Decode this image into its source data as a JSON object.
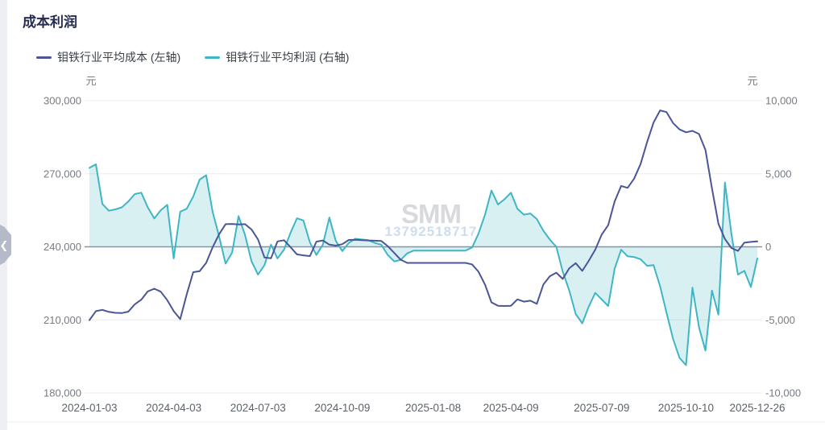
{
  "page": {
    "title": "成本利润"
  },
  "watermark": {
    "logo": "SMM",
    "phone": "13792518717"
  },
  "chart_data": {
    "type": "line",
    "title": "成本利润",
    "legend_position": "top-left",
    "grid": "horizontal-only",
    "grid_color": "#ececec",
    "zero_line_color": "#8d929c",
    "axis_text_color": "#767b84",
    "x_label_color": "#5d6268",
    "left_axis": {
      "unit": "元",
      "max": 300000,
      "min": 180000,
      "ticks": [
        "300,000",
        "270,000",
        "240,000",
        "210,000",
        "180,000"
      ]
    },
    "right_axis": {
      "unit": "元",
      "max": 10000,
      "min": -10000,
      "ticks": [
        "10,000",
        "5,000",
        "0",
        "-5,000",
        "-10,000"
      ]
    },
    "x_ticks": [
      {
        "index": 0,
        "label": "2024-01-03"
      },
      {
        "index": 13,
        "label": "2024-04-03"
      },
      {
        "index": 26,
        "label": "2024-07-03"
      },
      {
        "index": 39,
        "label": "2024-10-09"
      },
      {
        "index": 53,
        "label": "2025-01-08"
      },
      {
        "index": 65,
        "label": "2025-04-09"
      },
      {
        "index": 79,
        "label": "2025-07-09"
      },
      {
        "index": 92,
        "label": "2025-10-10"
      },
      {
        "index": 103,
        "label": "2025-12-26"
      }
    ],
    "series": [
      {
        "name": "钼铁行业平均成本 (左轴)",
        "axis": "left",
        "color": "#4a5695",
        "area": false,
        "values": [
          209900,
          213600,
          214100,
          213300,
          212900,
          212800,
          213400,
          216400,
          218300,
          221700,
          222800,
          221600,
          218100,
          213600,
          210300,
          220400,
          229600,
          230000,
          233400,
          239800,
          245200,
          249300,
          249400,
          249200,
          249300,
          247100,
          243000,
          235600,
          235300,
          242200,
          242700,
          239900,
          236900,
          236500,
          236200,
          242100,
          242600,
          240900,
          240500,
          241100,
          242800,
          242900,
          242700,
          242600,
          242500,
          242400,
          240300,
          237500,
          234700,
          233400,
          233400,
          233400,
          233400,
          233400,
          233400,
          233400,
          233400,
          233400,
          233400,
          232800,
          229800,
          224500,
          217200,
          215800,
          215700,
          215800,
          218400,
          217500,
          217900,
          216600,
          224500,
          227900,
          229400,
          226800,
          231200,
          233300,
          230100,
          234200,
          238800,
          245000,
          248900,
          258600,
          265000,
          264200,
          268000,
          274000,
          283000,
          291000,
          296000,
          295300,
          290800,
          288200,
          287000,
          287600,
          286300,
          279800,
          264000,
          249500,
          243200,
          239500,
          238300,
          241700,
          242000,
          242200
        ]
      },
      {
        "name": "钼铁行业平均利润 (右轴)",
        "axis": "right",
        "color": "#3fb6c3",
        "area": true,
        "area_color": "rgba(63,182,195,0.20)",
        "area_origin": 0,
        "values": [
          5400,
          5650,
          2930,
          2470,
          2560,
          2700,
          3100,
          3610,
          3700,
          2700,
          1940,
          2500,
          2870,
          -800,
          2400,
          2600,
          3430,
          4600,
          4900,
          2400,
          700,
          -1150,
          -400,
          2100,
          800,
          -1000,
          -1900,
          -1250,
          150,
          -800,
          -200,
          950,
          1950,
          1800,
          300,
          -560,
          150,
          2000,
          400,
          -290,
          270,
          550,
          500,
          450,
          270,
          150,
          -550,
          -1000,
          -900,
          -450,
          -260,
          -260,
          -260,
          -260,
          -260,
          -260,
          -260,
          -260,
          -260,
          -50,
          900,
          2200,
          3850,
          2900,
          3250,
          3700,
          2600,
          2200,
          2280,
          1900,
          1100,
          500,
          0,
          -1700,
          -3000,
          -4600,
          -5240,
          -4100,
          -3150,
          -3600,
          -4050,
          -1500,
          -200,
          -650,
          -700,
          -850,
          -1300,
          -1250,
          -2700,
          -4500,
          -6300,
          -7600,
          -8100,
          -2800,
          -5500,
          -7100,
          -3000,
          -4640,
          4400,
          900,
          -1900,
          -1650,
          -2750,
          -800
        ]
      }
    ]
  }
}
